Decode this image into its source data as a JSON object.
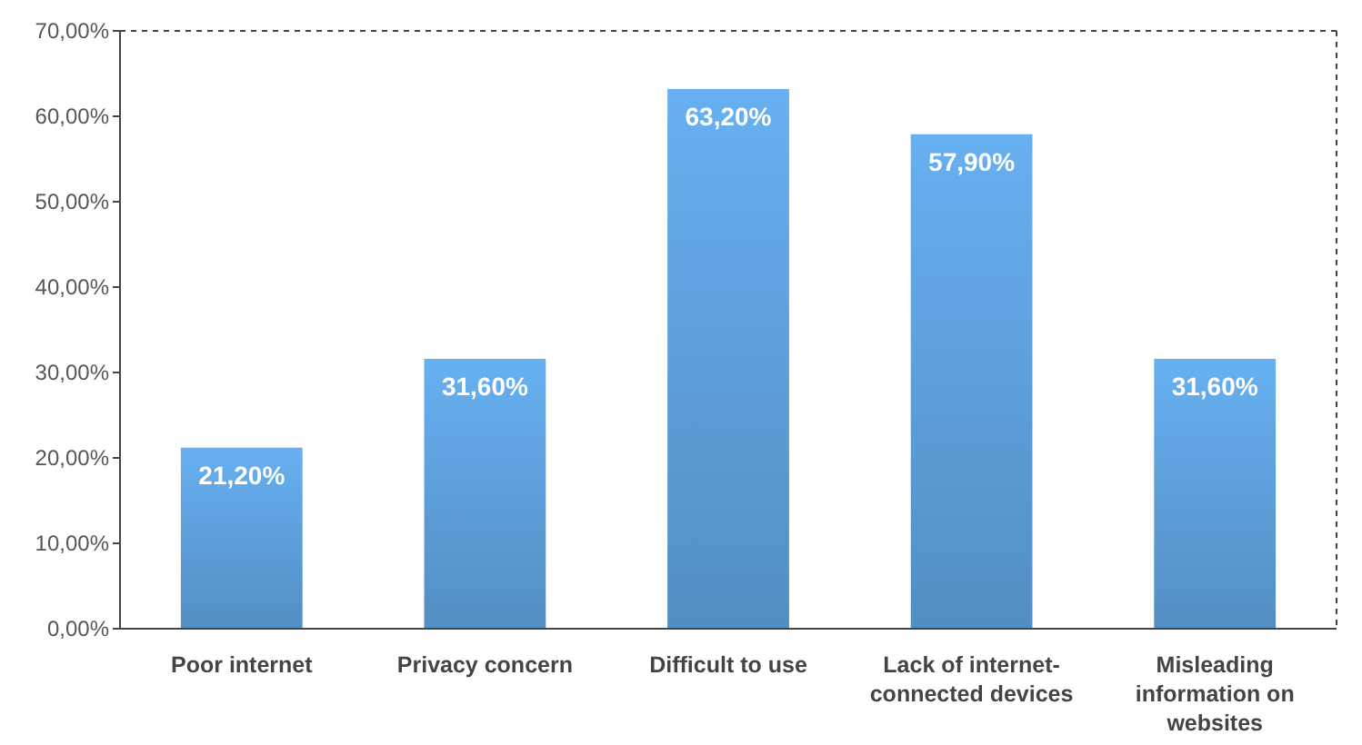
{
  "chart_data": {
    "type": "bar",
    "categories": [
      "Poor internet",
      "Privacy concern",
      "Difficult to use",
      "Lack of internet-connected devices",
      "Misleading information on websites"
    ],
    "values": [
      21.2,
      31.6,
      63.2,
      57.9,
      31.6
    ],
    "value_labels": [
      "21,20%",
      "31,60%",
      "63,20%",
      "57,90%",
      "31,60%"
    ],
    "color": "#5b9bd5",
    "ylim": [
      0,
      70
    ],
    "yticks": [
      {
        "value": 0,
        "label": "0,00%"
      },
      {
        "value": 10,
        "label": "10,00%"
      },
      {
        "value": 20,
        "label": "20,00%"
      },
      {
        "value": 30,
        "label": "30,00%"
      },
      {
        "value": 40,
        "label": "40,00%"
      },
      {
        "value": 50,
        "label": "50,00%"
      },
      {
        "value": 60,
        "label": "60,00%"
      },
      {
        "value": 70,
        "label": "70,00%"
      }
    ],
    "grid": false
  }
}
